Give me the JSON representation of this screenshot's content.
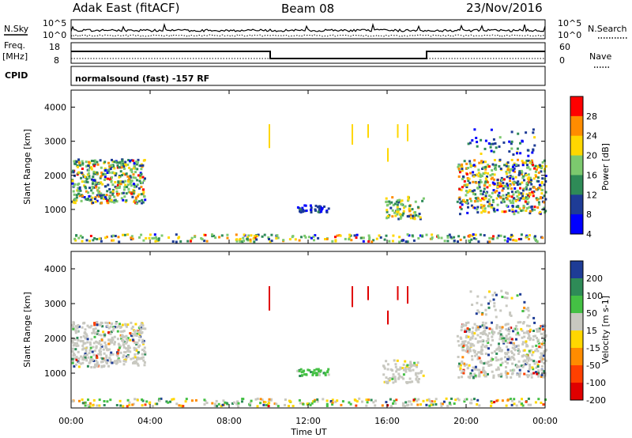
{
  "header": {
    "radar": "Adak East (fitACF)",
    "beam": "Beam 08",
    "date": "23/Nov/2016"
  },
  "top_panels": {
    "nsky_label": "N.Sky",
    "nsearch_label": "N.Search",
    "noise_ticks": [
      "10^5",
      "10^0"
    ],
    "freq_label": "Freq.",
    "freq_unit": "[MHz]",
    "freq_ticks": [
      "18",
      "8"
    ],
    "nave_label": "Nave",
    "nave_ticks": [
      "60",
      "0"
    ],
    "cpid_label": "CPID",
    "cpid_text": "normalsound (fast) -157 RF"
  },
  "chart_data": [
    {
      "type": "heatmap",
      "name": "power",
      "ylabel": "Slant Range [km]",
      "colorbar_label": "Power [dB]",
      "colorbar_ticks": [
        "28",
        "24",
        "20",
        "16",
        "12",
        "8",
        "4"
      ],
      "ylim": [
        0,
        4500
      ],
      "y_ticks": [
        "4000",
        "3000",
        "2000",
        "1000"
      ],
      "colors": [
        "#ff0000",
        "#ff8c00",
        "#ffd700",
        "#7cc96e",
        "#2e8b57",
        "#1e3c96",
        "#0000ff"
      ]
    },
    {
      "type": "heatmap",
      "name": "velocity",
      "ylabel": "Slant Range [km]",
      "colorbar_label": "Velocity [m s-1]",
      "colorbar_ticks": [
        "200",
        "100",
        "50",
        "15",
        "-15",
        "-50",
        "-100",
        "-200"
      ],
      "ylim": [
        0,
        4500
      ],
      "y_ticks": [
        "4000",
        "3000",
        "2000",
        "1000"
      ],
      "colors": [
        "#1e3c96",
        "#2e8b57",
        "#44c044",
        "#c8c8c0",
        "#ffd700",
        "#ff8c00",
        "#ff4000",
        "#e00000"
      ]
    }
  ],
  "x_axis": {
    "ticks": [
      "00:00",
      "04:00",
      "08:00",
      "12:00",
      "16:00",
      "20:00",
      "00:00"
    ],
    "xlabel": "Time UT",
    "xlim_hours": [
      0,
      24
    ]
  }
}
